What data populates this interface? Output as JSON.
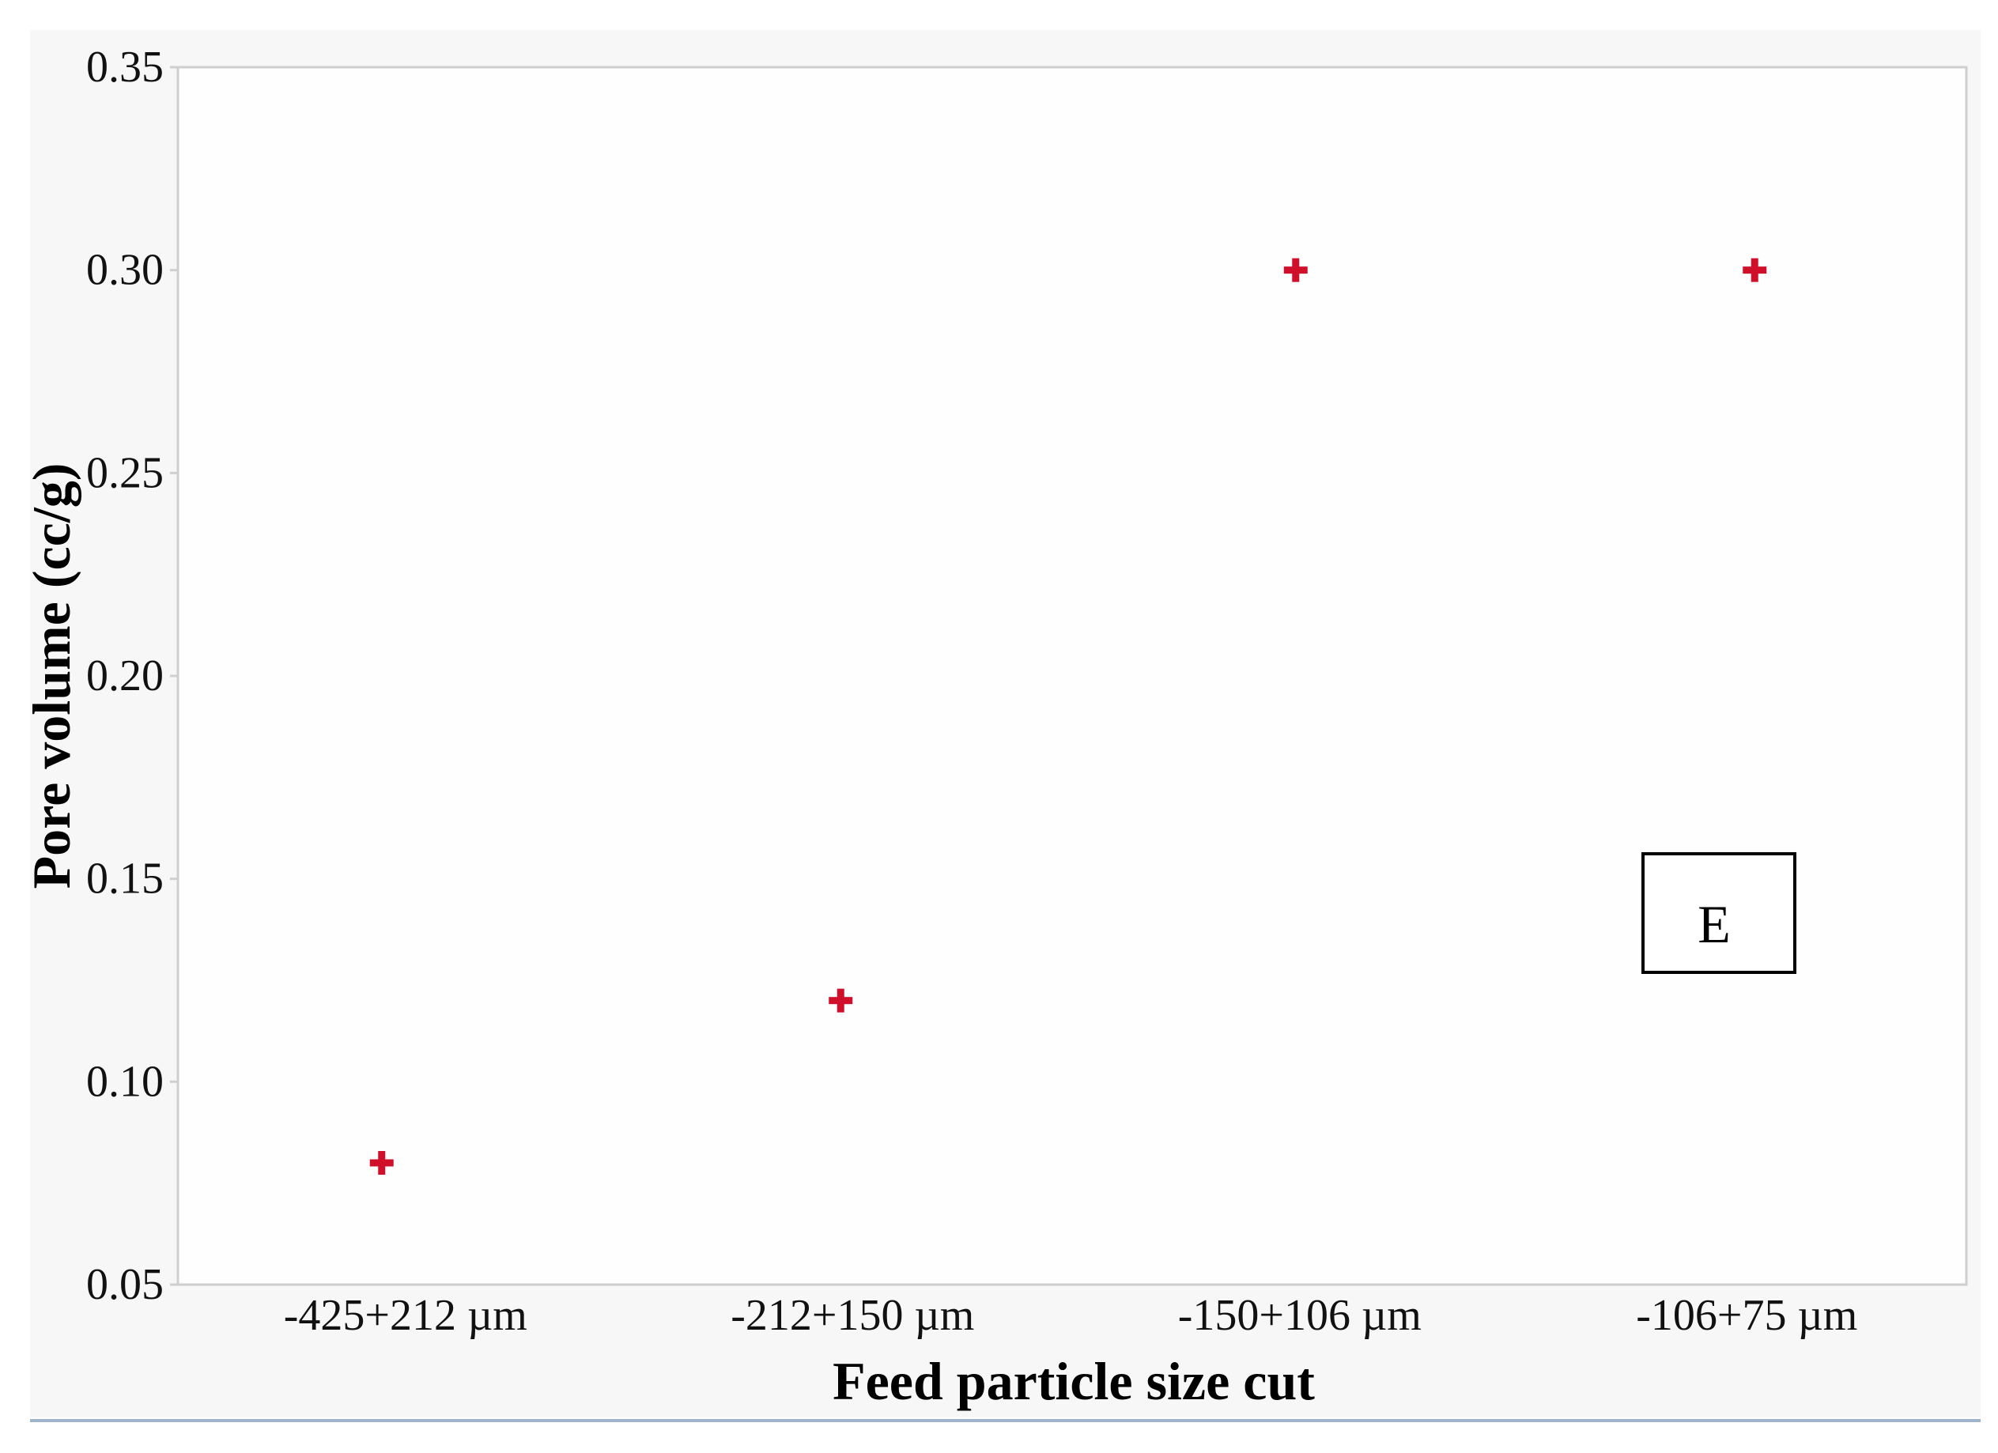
{
  "chart_data": {
    "type": "scatter",
    "title": "",
    "xlabel": "Feed particle size cut",
    "ylabel": "Pore volume (cc/g)",
    "categories": [
      "-425+212 µm",
      "-212+150 µm",
      "-150+106 µm",
      "-106+75 µm"
    ],
    "series": [
      {
        "values": [
          0.08,
          0.12,
          0.3,
          0.3
        ],
        "color": "#d0102a",
        "marker": "plus"
      }
    ],
    "ylim": [
      0.05,
      0.35
    ],
    "yticks": [
      "0.05",
      "0.10",
      "0.15",
      "0.20",
      "0.25",
      "0.30",
      "0.35"
    ],
    "grid": false,
    "annotations": [
      {
        "text": "E"
      }
    ]
  },
  "colors": {
    "outer_background": "#f7f7f7",
    "plot_background": "#fefefe",
    "frame": "#cfcfcf",
    "bottom_rule": "#9fb4cc"
  }
}
